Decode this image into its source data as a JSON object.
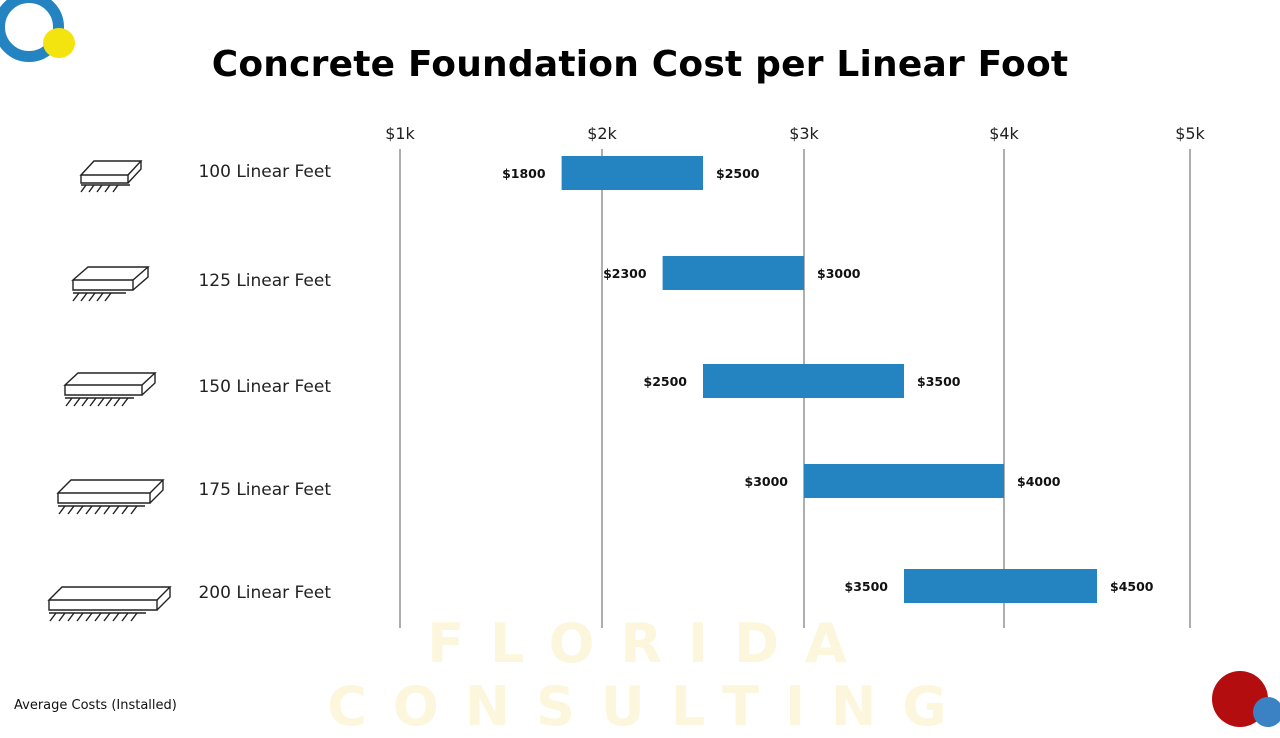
{
  "title": "Concrete Foundation Cost per Linear Foot",
  "footnote": "Average Costs (Installed)",
  "watermark": "FLORIDA CONSULTING",
  "colors": {
    "bar": "#2484c1",
    "grid": "#999999",
    "logo_blue": "#2484c1",
    "logo_yellow": "#f3e40f",
    "corner_red": "#b40d10"
  },
  "chart_data": {
    "type": "bar",
    "orientation": "horizontal-range",
    "title": "Concrete Foundation Cost per Linear Foot",
    "categories": [
      "100 Linear Feet",
      "125 Linear Feet",
      "150 Linear Feet",
      "175 Linear Feet",
      "200 Linear Feet"
    ],
    "ranges": [
      [
        1800,
        2500
      ],
      [
        2300,
        3000
      ],
      [
        2500,
        3500
      ],
      [
        3000,
        4000
      ],
      [
        3500,
        4500
      ]
    ],
    "low_labels": [
      "$1800",
      "$2300",
      "$2500",
      "$3000",
      "$3500"
    ],
    "high_labels": [
      "$2500",
      "$3000",
      "$3500",
      "$4000",
      "$4500"
    ],
    "ticks": [
      1000,
      2000,
      3000,
      4000,
      5000
    ],
    "tick_labels": [
      "$1k",
      "$2k",
      "$3k",
      "$4k",
      "$5k"
    ],
    "xlim": [
      1000,
      5000
    ],
    "grid": true,
    "xlabel": "",
    "ylabel": ""
  }
}
